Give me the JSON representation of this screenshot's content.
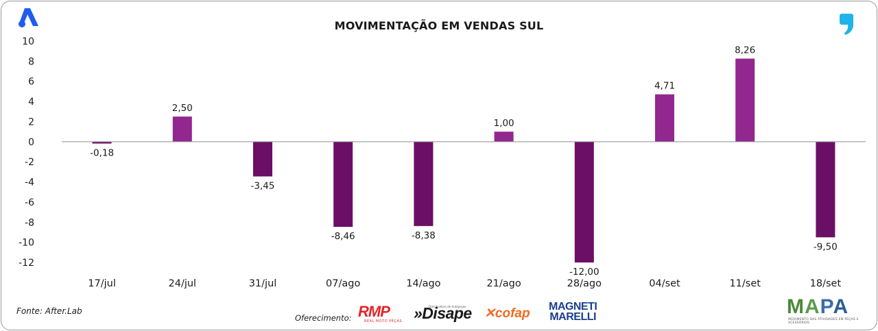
{
  "chart_data": {
    "type": "bar",
    "title": "MOVIMENTAÇÃO EM VENDAS SUL",
    "xlabel": "",
    "ylabel": "",
    "categories": [
      "17/jul",
      "24/jul",
      "31/jul",
      "07/ago",
      "14/ago",
      "21/ago",
      "28/ago",
      "04/set",
      "11/set",
      "18/set"
    ],
    "values": [
      -0.18,
      2.5,
      -3.45,
      -8.46,
      -8.38,
      1.0,
      -12.0,
      4.71,
      8.26,
      -9.5
    ],
    "value_labels": [
      "-0,18",
      "2,50",
      "-3,45",
      "-8,46",
      "-8,38",
      "1,00",
      "-12,00",
      "4,71",
      "8,26",
      "-9,50"
    ],
    "ylim": [
      -12,
      10
    ],
    "yticks": [
      10,
      8,
      6,
      4,
      2,
      0,
      -2,
      -4,
      -6,
      -8,
      -10,
      -12
    ],
    "ytick_labels": [
      "10",
      "8",
      "6",
      "4",
      "2",
      "0",
      "-2",
      "-4",
      "-6",
      "-8",
      "-10",
      "-12"
    ],
    "grid": false,
    "legend": "none",
    "colors": {
      "positive": "#92278f",
      "negative": "#6b0f66",
      "axis": "#9a9a9a"
    }
  },
  "footer": {
    "source": "Fonte: After.Lab",
    "offer_label": "Oferecimento:"
  },
  "sponsors": {
    "rmp": "RMP",
    "rmp_sub": "REAL MOTO PEÇAS",
    "disape": "»Disape",
    "disape_sub": "Distribuidora de Autopeças",
    "cofap": "cofap",
    "magneti_line1": "MAGNETI",
    "magneti_line2": "MARELLI",
    "mapa": "MAPA",
    "mapa_sub": "MOVIMENTO DAS ATIVIDADES EM PEÇAS E ACESSÓRIOS"
  },
  "icons": {
    "top_left": "after-lab-logo-icon",
    "top_right": "comma-logo-icon"
  },
  "brand_colors": {
    "after_lab_blue": "#1f5cf0",
    "comma_blue": "#1db4e8"
  }
}
